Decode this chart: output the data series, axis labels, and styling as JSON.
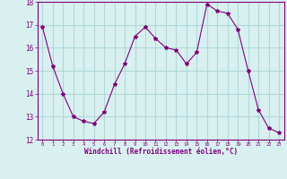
{
  "x": [
    0,
    1,
    2,
    3,
    4,
    5,
    6,
    7,
    8,
    9,
    10,
    11,
    12,
    13,
    14,
    15,
    16,
    17,
    18,
    19,
    20,
    21,
    22,
    23
  ],
  "y": [
    16.9,
    15.2,
    14.0,
    13.0,
    12.8,
    12.7,
    13.2,
    14.4,
    15.3,
    16.5,
    16.9,
    16.4,
    16.0,
    15.9,
    15.3,
    15.8,
    17.9,
    17.6,
    17.5,
    16.8,
    15.0,
    13.3,
    12.5,
    12.3
  ],
  "line_color": "#800080",
  "marker": "*",
  "marker_size": 3,
  "background_color": "#d8f0f0",
  "grid_color": "#b0d8d8",
  "xlabel": "Windchill (Refroidissement éolien,°C)",
  "xlabel_color": "#800080",
  "tick_color": "#800080",
  "ylim": [
    12,
    18
  ],
  "xlim": [
    -0.5,
    23.5
  ],
  "yticks": [
    12,
    13,
    14,
    15,
    16,
    17,
    18
  ],
  "xticks": [
    0,
    1,
    2,
    3,
    4,
    5,
    6,
    7,
    8,
    9,
    10,
    11,
    12,
    13,
    14,
    15,
    16,
    17,
    18,
    19,
    20,
    21,
    22,
    23
  ]
}
